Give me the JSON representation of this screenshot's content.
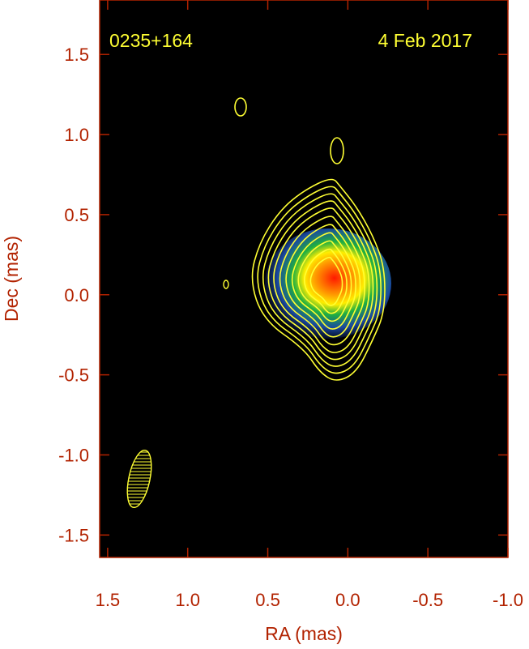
{
  "chart_data": {
    "type": "image",
    "annotations": [
      "0235+164",
      "4 Feb 2017"
    ],
    "x_label": "RA (mas)",
    "y_label": "Dec (mas)",
    "xlim": [
      1.55,
      -1.0
    ],
    "ylim": [
      -1.64,
      1.84
    ],
    "xticks": [
      1.5,
      {
        "value": 1,
        "label": "1.0"
      },
      0.5,
      {
        "value": 0,
        "label": "0.0"
      },
      -0.5,
      {
        "value": -1,
        "label": "-1.0"
      }
    ],
    "yticks": [
      1.5,
      {
        "value": 1,
        "label": "1.0"
      },
      0.5,
      {
        "value": 0,
        "label": "0.0"
      },
      -0.5,
      {
        "value": -1,
        "label": "-1.0"
      },
      -1.5
    ],
    "color": "#ffff33"
  }
}
